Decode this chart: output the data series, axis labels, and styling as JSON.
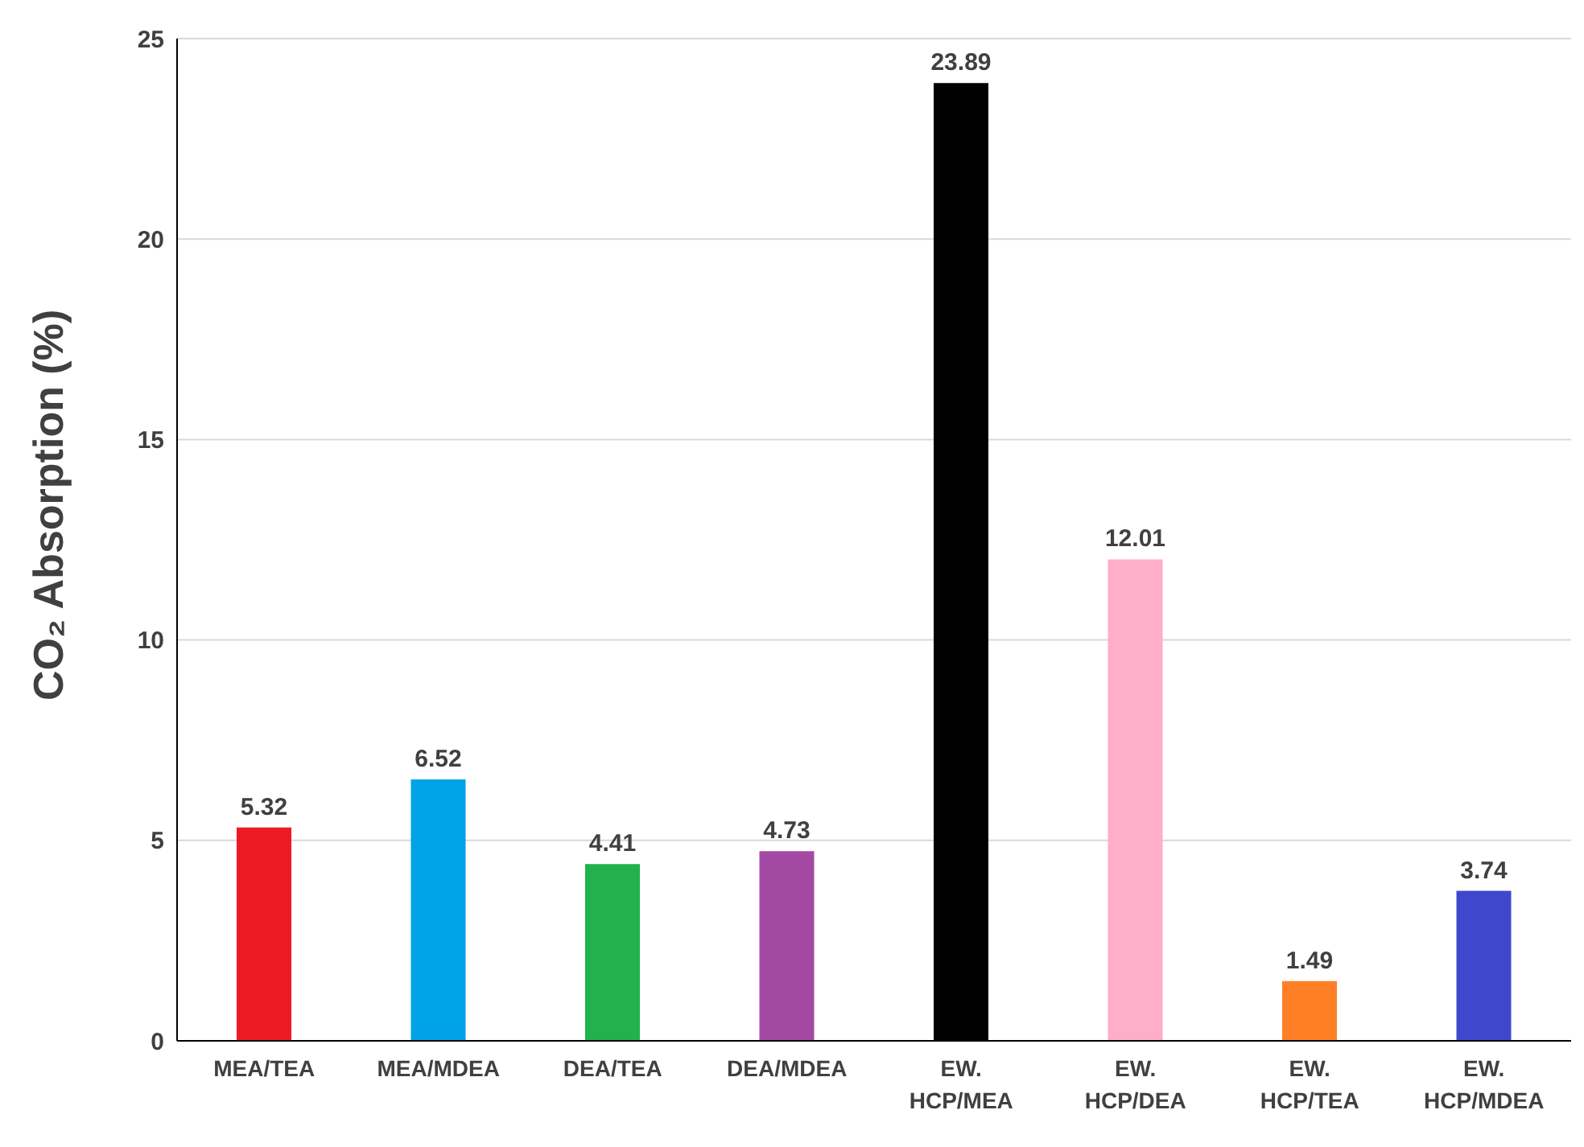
{
  "chart_data": {
    "type": "bar",
    "ylabel": "CO₂ Absorption (%)",
    "categories": [
      "MEA/TEA",
      "MEA/MDEA",
      "DEA/TEA",
      "DEA/MDEA",
      "EW. HCP/MEA",
      "EW. HCP/DEA",
      "EW. HCP/TEA",
      "EW. HCP/MDEA"
    ],
    "values": [
      5.32,
      6.52,
      4.41,
      4.73,
      23.89,
      12.01,
      1.49,
      3.74
    ],
    "colors": [
      "#ed1c24",
      "#00a2e8",
      "#22b14c",
      "#a349a4",
      "#000000",
      "#ffaec9",
      "#ff7f27",
      "#3f48cc"
    ],
    "ylim": [
      0,
      25
    ],
    "yticks": [
      0,
      5,
      10,
      15,
      20,
      25
    ],
    "grid": "y",
    "data_labels": true
  }
}
